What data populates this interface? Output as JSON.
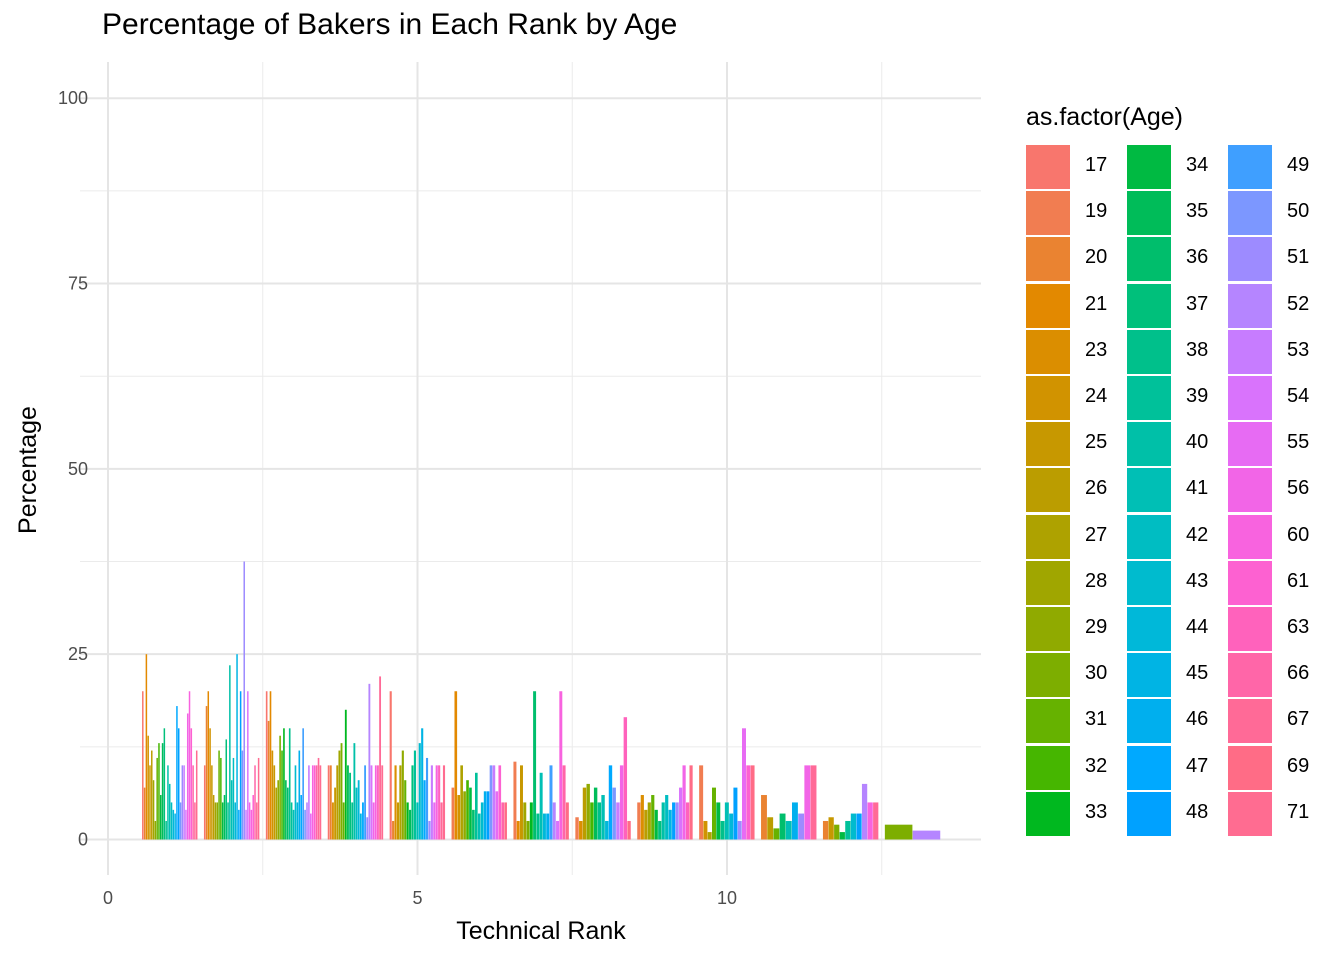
{
  "title": "Percentage of Bakers in Each Rank by Age",
  "legend": {
    "title": "as.factor(Age)",
    "ages": [
      "17",
      "19",
      "20",
      "21",
      "23",
      "24",
      "25",
      "26",
      "27",
      "28",
      "29",
      "30",
      "31",
      "32",
      "33",
      "34",
      "35",
      "36",
      "37",
      "38",
      "39",
      "40",
      "41",
      "42",
      "43",
      "44",
      "45",
      "46",
      "47",
      "48",
      "49",
      "50",
      "51",
      "52",
      "53",
      "54",
      "55",
      "56",
      "60",
      "61",
      "63",
      "66",
      "67",
      "69",
      "71"
    ],
    "colors": [
      "#F8766D",
      "#F17D51",
      "#EA8331",
      "#E38900",
      "#DB8E00",
      "#D19300",
      "#C79800",
      "#BB9D00",
      "#AEA200",
      "#A0A600",
      "#90AA00",
      "#7DAE00",
      "#66B200",
      "#46B600",
      "#00B81F",
      "#00BA42",
      "#00BC59",
      "#00BE6C",
      "#00C07B",
      "#00C08B",
      "#00C19A",
      "#00C0A8",
      "#00BFB5",
      "#00BDC2",
      "#00BBCE",
      "#00B8D9",
      "#00B4E4",
      "#00AFEE",
      "#00A9FF",
      "#00A1FF",
      "#3F9FFF",
      "#7C97FF",
      "#9D8BFF",
      "#B585FF",
      "#C77CFF",
      "#D973FC",
      "#E76BF3",
      "#F265E7",
      "#F863DF",
      "#FD61D1",
      "#FF62BC",
      "#FF66A8",
      "#FF6A97",
      "#FF6C86",
      "#FF6C91"
    ]
  },
  "chart_data": {
    "type": "bar",
    "title": "Percentage of Bakers in Each Rank by Age",
    "xlabel": "Technical Rank",
    "ylabel": "Percentage",
    "xlim": [
      -0.05,
      14
    ],
    "ylim": [
      -4,
      104
    ],
    "x_ticks": [
      0,
      5,
      10
    ],
    "y_ticks": [
      0,
      25,
      50,
      75,
      100
    ],
    "grid": true,
    "legend_position": "right",
    "bar_groups": [
      {
        "rank": 1,
        "values": [
          20,
          7,
          25,
          14,
          10,
          12,
          8,
          2.5,
          11,
          13,
          6,
          13,
          15,
          2.5,
          10,
          7.5,
          5,
          4,
          3.5,
          18,
          15,
          5,
          10,
          10,
          4,
          17,
          20,
          15,
          10,
          5,
          12
        ]
      },
      {
        "rank": 2,
        "values": [
          10,
          18,
          20,
          15,
          10,
          6,
          5,
          5,
          12,
          11,
          5,
          6,
          13.5,
          5,
          23.5,
          8,
          11,
          5,
          25,
          4,
          20,
          12,
          37.5,
          4,
          20,
          5,
          4,
          6,
          10,
          5,
          11
        ]
      },
      {
        "rank": 3,
        "values": [
          20,
          16,
          20,
          12,
          10,
          7,
          8,
          14,
          12,
          15,
          8,
          7,
          15,
          5,
          4,
          10,
          5,
          12,
          6,
          15,
          4,
          5,
          10,
          3.5,
          10,
          10,
          10,
          11,
          10
        ]
      },
      {
        "rank": 4,
        "values": [
          10,
          10,
          5,
          7,
          10,
          12,
          13,
          5,
          17.5,
          10,
          9,
          5,
          13,
          7,
          8,
          3.5,
          5,
          10,
          3,
          21,
          10,
          5,
          10,
          10,
          22,
          10
        ]
      },
      {
        "rank": 5,
        "values": [
          20,
          2.5,
          10,
          5,
          10,
          12,
          8,
          5,
          4,
          10,
          12,
          5,
          13,
          15,
          8,
          11,
          2.5,
          10,
          5,
          10,
          10,
          5,
          10
        ]
      },
      {
        "rank": 6,
        "values": [
          7,
          20,
          6,
          10,
          6.5,
          8,
          7,
          4,
          9,
          3.5,
          5,
          6.5,
          6.5,
          10,
          10,
          6.5,
          10,
          5,
          5
        ]
      },
      {
        "rank": 7,
        "values": [
          10.5,
          2.5,
          10,
          5,
          2.5,
          5,
          20,
          3.5,
          9,
          3.5,
          3.5,
          10,
          5,
          2.5,
          20,
          10,
          5
        ]
      },
      {
        "rank": 8,
        "values": [
          3,
          2.5,
          7,
          7.5,
          5,
          7,
          5,
          6,
          2.5,
          10,
          7,
          5,
          10,
          16.5,
          2.5
        ]
      },
      {
        "rank": 9,
        "values": [
          5,
          6,
          4,
          5,
          6,
          4,
          2.5,
          5,
          6,
          4,
          5,
          5,
          7,
          10,
          5,
          10
        ]
      },
      {
        "rank": 10,
        "values": [
          10,
          2.5,
          1,
          7,
          5,
          2.5,
          5,
          3.5,
          7,
          2.5,
          15,
          10,
          10
        ]
      },
      {
        "rank": 11,
        "values": [
          6,
          3,
          1.5,
          3.5,
          2.5,
          5,
          3.5,
          10,
          10
        ]
      },
      {
        "rank": 12,
        "values": [
          2.5,
          3,
          2,
          1,
          2.5,
          3.5,
          3.5,
          7.5,
          5,
          5
        ]
      },
      {
        "rank": 13,
        "values": [
          2,
          1.2
        ]
      }
    ]
  }
}
